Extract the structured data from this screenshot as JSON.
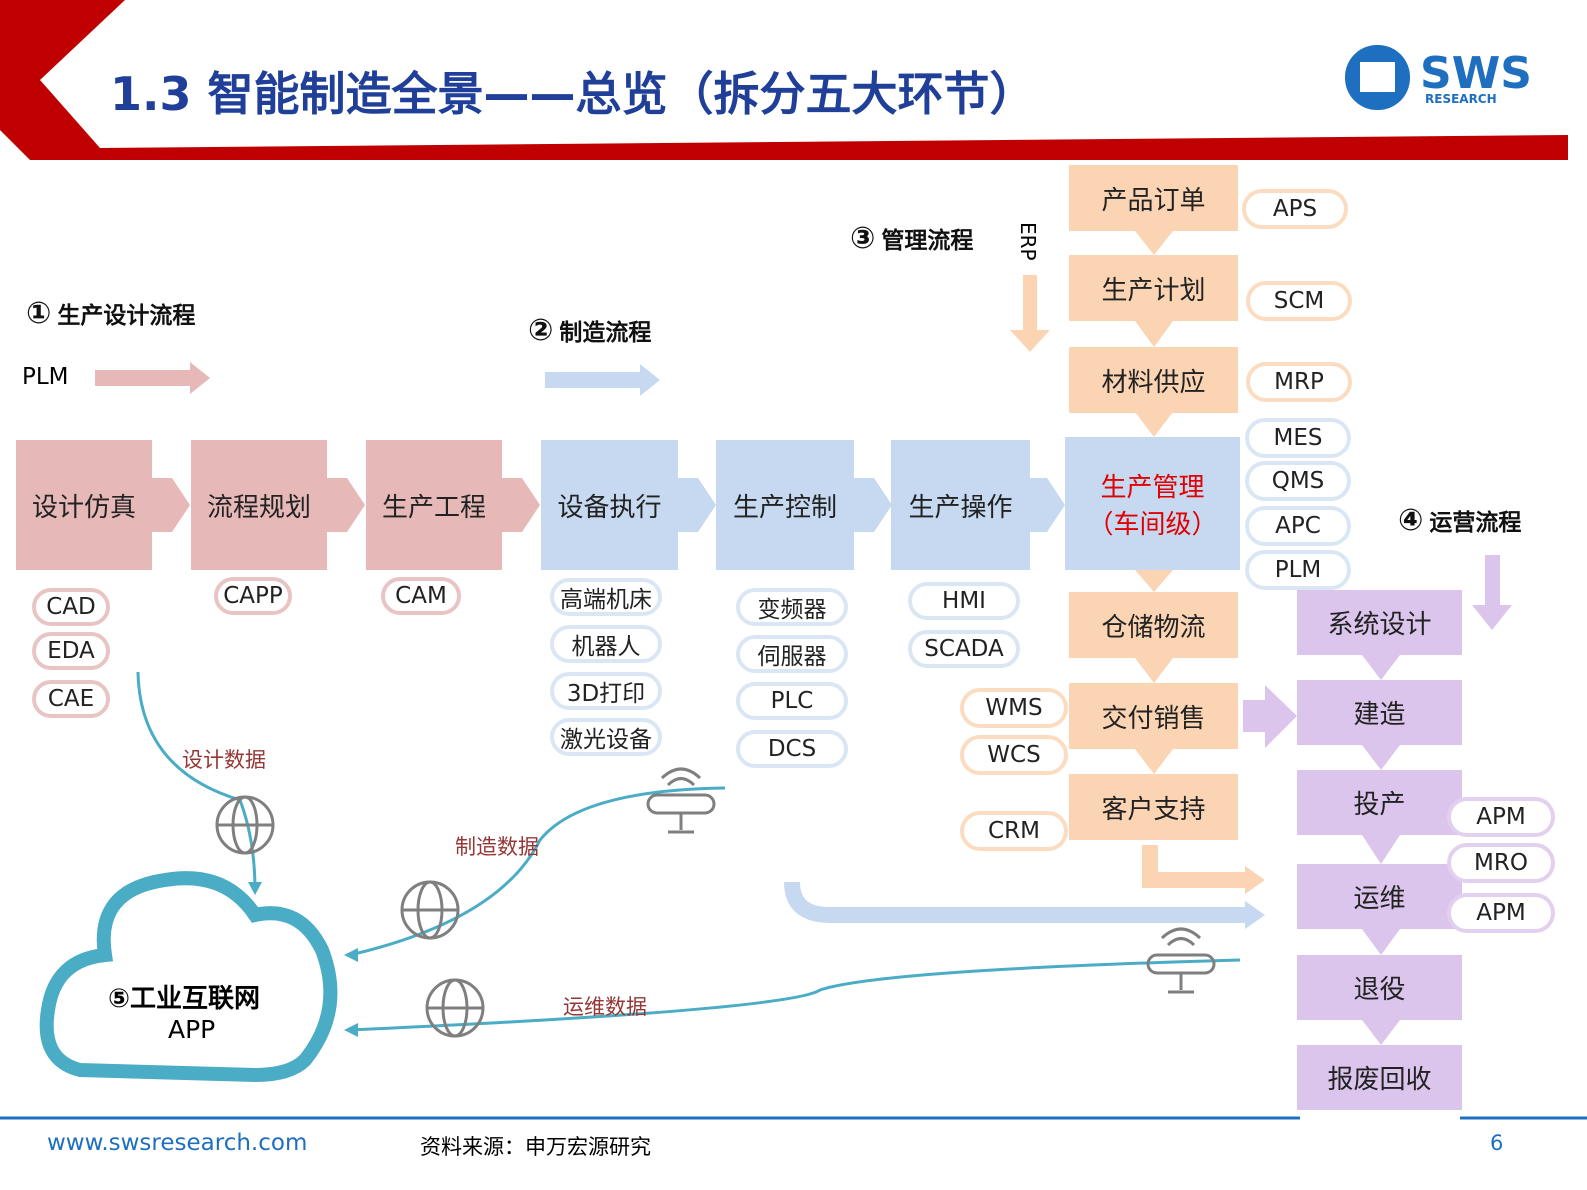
{
  "header": {
    "title": "1.3 智能制造全景——总览（拆分五大环节）",
    "logo": "SWS",
    "logo_sub": "RESEARCH"
  },
  "flows": [
    {
      "number": "①",
      "label": "生产设计流程",
      "tag": "PLM"
    },
    {
      "number": "②",
      "label": "制造流程"
    },
    {
      "number": "③",
      "label": "管理流程",
      "tag": "ERP"
    },
    {
      "number": "④",
      "label": "运营流程"
    }
  ],
  "process": [
    "设计仿真",
    "流程规划",
    "生产工程",
    "设备执行",
    "生产控制",
    "生产操作"
  ],
  "center": {
    "line1": "生产管理",
    "line2": "（车间级）"
  },
  "tools": [
    [
      "CAD",
      "EDA",
      "CAE"
    ],
    [
      "CAPP"
    ],
    [
      "CAM"
    ],
    [
      "高端机床",
      "机器人",
      "3D打印",
      "激光设备"
    ],
    [
      "变频器",
      "伺服器",
      "PLC",
      "DCS"
    ],
    [
      "HMI",
      "SCADA"
    ]
  ],
  "management": [
    "产品订单",
    "生产计划",
    "材料供应"
  ],
  "management_tools": [
    "APS",
    "SCM",
    "MRP"
  ],
  "center_tools": [
    "MES",
    "QMS",
    "APC",
    "PLM"
  ],
  "delivery": [
    "仓储物流",
    "交付销售",
    "客户支持"
  ],
  "delivery_tools": [
    "WMS",
    "WCS",
    "CRM"
  ],
  "operations": [
    "系统设计",
    "建造",
    "投产",
    "运维",
    "退役",
    "报废回收"
  ],
  "operations_tools": [
    "APM",
    "MRO",
    "APM"
  ],
  "data_flows": [
    "设计数据",
    "制造数据",
    "运维数据"
  ],
  "cloud": {
    "number": "⑤",
    "label": "工业互联网",
    "sub": "APP"
  },
  "footer": {
    "url": "www.swsresearch.com",
    "source": "资料来源：申万宏源研究",
    "page": "6"
  }
}
